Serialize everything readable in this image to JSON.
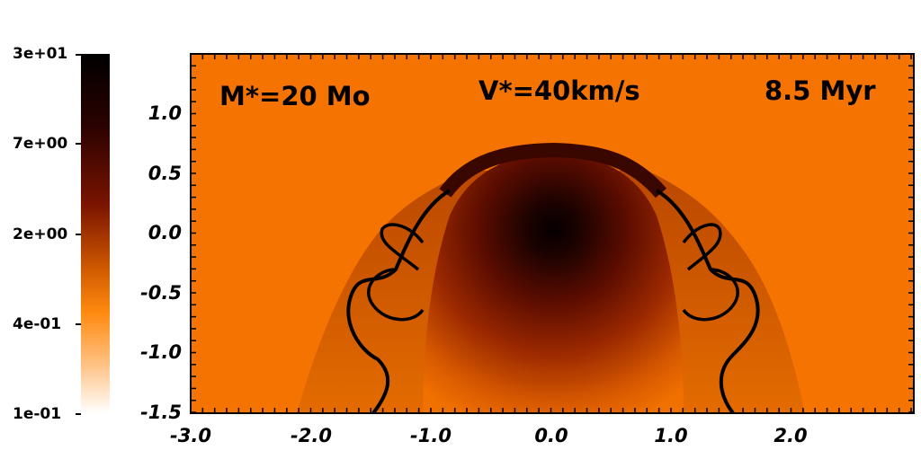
{
  "colorbar": {
    "labels": [
      "3e+01",
      "7e+00",
      "2e+00",
      "4e-01",
      "1e-01"
    ],
    "colors": [
      "#000000",
      "#3a0400",
      "#8a1a00",
      "#ff8a00",
      "#ffffff"
    ]
  },
  "plot": {
    "background": "#f57300",
    "annotations": {
      "mass": "M*=20 Mo",
      "velocity": "V*=40km/s",
      "time": "8.5 Myr"
    },
    "yticks": [
      "1.0",
      "0.5",
      "0.0",
      "-0.5",
      "-1.0",
      "-1.5"
    ],
    "xticks": [
      "-3.0",
      "-2.0",
      "-1.0",
      "0.0",
      "1.0",
      "2.0"
    ]
  }
}
